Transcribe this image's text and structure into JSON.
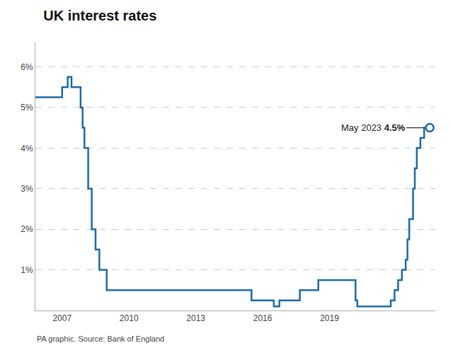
{
  "chart_data": {
    "type": "line",
    "title": "UK interest rates",
    "source": "PA graphic. Source: Bank of England",
    "annotations": [
      "May 2023",
      "4.5%"
    ],
    "color": "#1a6aad",
    "x": [
      2005.8,
      2006.75,
      2007.0,
      2007.0,
      2007.25,
      2007.25,
      2007.42,
      2007.42,
      2007.83,
      2007.83,
      2007.92,
      2007.92,
      2008.0,
      2008.0,
      2008.17,
      2008.17,
      2008.33,
      2008.33,
      2008.5,
      2008.5,
      2008.67,
      2008.67,
      2009.0,
      2009.0,
      2009.17,
      2012.5,
      2015.5,
      2015.5,
      2016.5,
      2016.5,
      2016.75,
      2016.75,
      2017.67,
      2017.67,
      2018.5,
      2018.5,
      2019.67,
      2020.17,
      2020.17,
      2020.25,
      2020.25,
      2021.75,
      2021.75,
      2021.92,
      2021.92,
      2022.08,
      2022.08,
      2022.25,
      2022.25,
      2022.42,
      2022.42,
      2022.5,
      2022.5,
      2022.58,
      2022.58,
      2022.75,
      2022.75,
      2022.83,
      2022.83,
      2022.92,
      2022.92,
      2023.08,
      2023.08,
      2023.25,
      2023.25,
      2023.5
    ],
    "values": [
      5.25,
      5.25,
      5.25,
      5.5,
      5.5,
      5.75,
      5.75,
      5.5,
      5.5,
      5.0,
      5.0,
      4.5,
      4.5,
      4.0,
      4.0,
      3.0,
      3.0,
      2.0,
      2.0,
      1.5,
      1.5,
      1.0,
      1.0,
      0.5,
      0.5,
      0.5,
      0.5,
      0.25,
      0.25,
      0.1,
      0.1,
      0.25,
      0.25,
      0.5,
      0.5,
      0.75,
      0.75,
      0.75,
      0.25,
      0.25,
      0.1,
      0.1,
      0.25,
      0.25,
      0.5,
      0.5,
      0.75,
      0.75,
      1.0,
      1.0,
      1.25,
      1.25,
      1.75,
      1.75,
      2.25,
      2.25,
      3.0,
      3.0,
      3.5,
      3.5,
      4.0,
      4.0,
      4.25,
      4.25,
      4.5,
      4.5
    ],
    "endpoint": {
      "x": 2023.5,
      "y": 4.5,
      "marker": "hollow circle"
    },
    "xlim": [
      2005.8,
      2023.75
    ],
    "xticks": [
      2007,
      2010,
      2013,
      2016,
      2019
    ],
    "ylim": [
      0,
      6.6
    ],
    "yticks": [
      {
        "value": 1,
        "label": "1%"
      },
      {
        "value": 2,
        "label": "2%"
      },
      {
        "value": 3,
        "label": "3%"
      },
      {
        "value": 4,
        "label": "4%"
      },
      {
        "value": 5,
        "label": "5%"
      },
      {
        "value": 6,
        "label": "6%"
      }
    ],
    "grid": "y"
  }
}
